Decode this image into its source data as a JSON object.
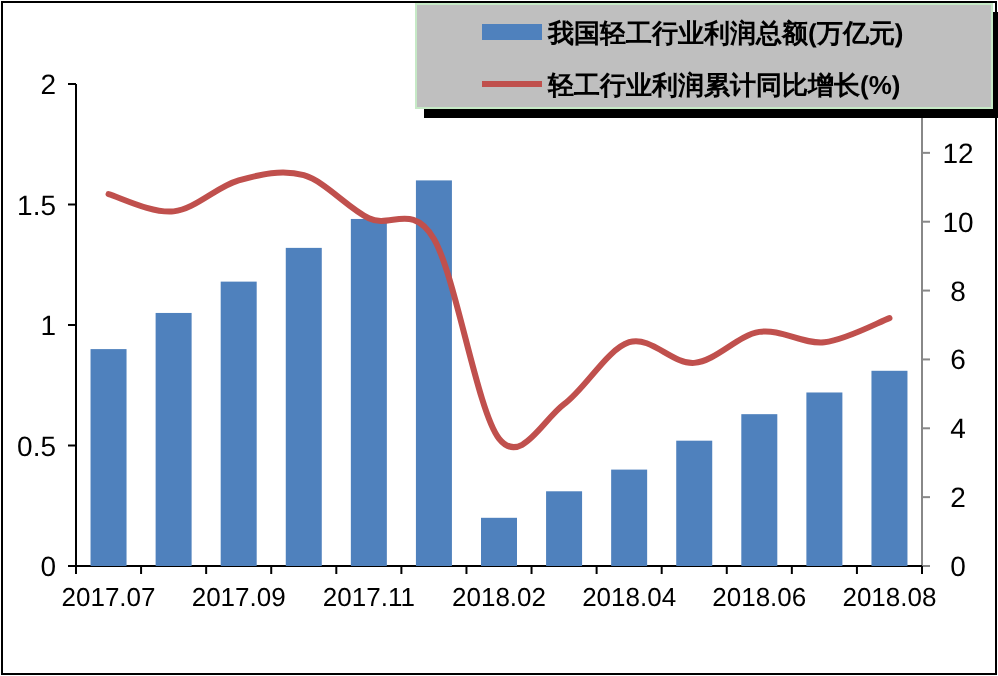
{
  "chart_data": {
    "type": "bar",
    "categories": [
      "2017.07",
      null,
      "2017.09",
      null,
      "2017.11",
      null,
      "2018.02",
      null,
      "2018.04",
      null,
      "2018.06",
      null,
      "2018.08"
    ],
    "series": [
      {
        "name": "我国轻工行业利润总额(万亿元)",
        "color": "#4f81bd",
        "values": [
          0.9,
          1.05,
          1.18,
          1.32,
          1.44,
          1.6,
          0.2,
          0.31,
          0.4,
          0.52,
          0.63,
          0.72,
          0.81
        ]
      },
      {
        "name": "轻工行业利润累计同比增长(%)",
        "type": "line",
        "axis": "y2",
        "color": "#c0504d",
        "values": [
          10.8,
          10.3,
          11.2,
          11.35,
          10.1,
          9.5,
          3.7,
          4.7,
          6.5,
          5.9,
          6.8,
          6.5,
          7.2
        ]
      }
    ],
    "ylim": [
      0,
      2
    ],
    "yticks": [
      0,
      0.5,
      1,
      1.5,
      2
    ],
    "y2lim": [
      0,
      14
    ],
    "y2ticks": [
      0,
      2,
      4,
      6,
      8,
      10,
      12
    ],
    "grid": false,
    "legend": "top right"
  }
}
